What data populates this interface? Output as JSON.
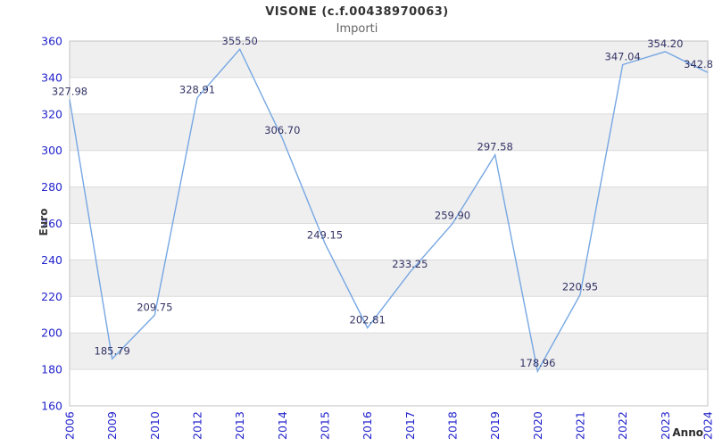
{
  "chart_data": {
    "type": "line",
    "title": "VISONE (c.f.00438970063)",
    "subtitle": "Importi",
    "xlabel": "Anno",
    "ylabel": "Euro",
    "categories": [
      "2006",
      "2009",
      "2010",
      "2012",
      "2013",
      "2014",
      "2015",
      "2016",
      "2017",
      "2018",
      "2019",
      "2020",
      "2021",
      "2022",
      "2023",
      "2024"
    ],
    "values": [
      327.98,
      185.79,
      209.75,
      328.91,
      355.5,
      306.7,
      249.15,
      202.81,
      233.25,
      259.9,
      297.58,
      178.96,
      220.95,
      347.04,
      354.2,
      342.8
    ],
    "point_labels": [
      "327.98",
      "185.79",
      "209.75",
      "328.91",
      "355.50",
      "306.70",
      "249.15",
      "202.81",
      "233.25",
      "259.90",
      "297.58",
      "178.96",
      "220.95",
      "347.04",
      "354.20",
      "342.8"
    ],
    "ylim": [
      160,
      360
    ],
    "ytick_step": 20,
    "ytick_labels": [
      "160",
      "180",
      "200",
      "220",
      "240",
      "260",
      "280",
      "300",
      "320",
      "340",
      "360"
    ],
    "grid": "horizontal-bands-alternating",
    "legend": "none",
    "colors": {
      "line": "#76a7e3",
      "tick_label": "#2222cc",
      "point_label": "#333366",
      "band": "#efefef",
      "gridline": "#dcdcdc",
      "border": "#c3c3c3",
      "title": "#333333",
      "subtitle": "#666666",
      "axis_title": "#3a3a3a"
    }
  }
}
